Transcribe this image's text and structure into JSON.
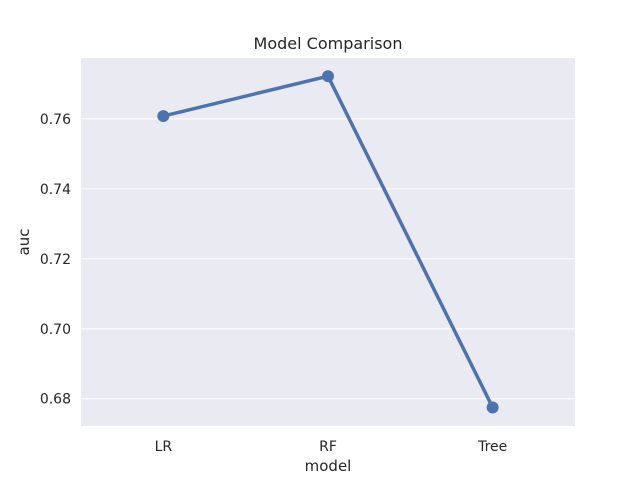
{
  "chart_data": {
    "type": "line",
    "title": "Model Comparison",
    "xlabel": "model",
    "ylabel": "auc",
    "categories": [
      "LR",
      "RF",
      "Tree"
    ],
    "series": [
      {
        "values": [
          0.7608,
          0.7722,
          0.6775
        ]
      }
    ],
    "ylim": [
      0.6722,
      0.7774
    ],
    "yticks": [
      0.68,
      0.7,
      0.72,
      0.74,
      0.76
    ],
    "ytick_labels": [
      "0.68",
      "0.70",
      "0.72",
      "0.74",
      "0.76"
    ],
    "grid": true,
    "colors": {
      "line": "#4c72b0",
      "plot_background": "#eaeaf2",
      "grid": "#ffffff"
    }
  }
}
